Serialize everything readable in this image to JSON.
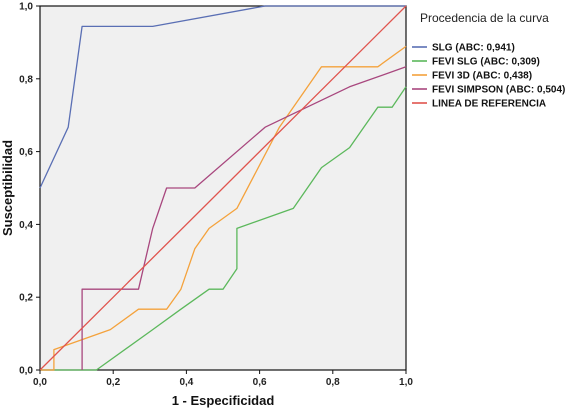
{
  "chart_data": {
    "type": "line",
    "title": "",
    "xlabel": "1 - Especificidad",
    "ylabel": "Susceptibilidad",
    "xlim": [
      0,
      1
    ],
    "ylim": [
      0,
      1
    ],
    "xticks": [
      "0,0",
      "0,2",
      "0,4",
      "0,6",
      "0,8",
      "1,0"
    ],
    "yticks": [
      "0,0",
      "0,2",
      "0,4",
      "0,6",
      "0,8",
      "1,0"
    ],
    "grid": false,
    "legend_title": "Procedencia de la curva",
    "legend_position": "right",
    "series": [
      {
        "name": "SLG (ABC: 0,941)",
        "color": "#5a6fb4",
        "x": [
          0,
          0.077,
          0.115,
          0.308,
          0.615,
          1.0
        ],
        "y": [
          0.5,
          0.667,
          0.944,
          0.944,
          1.0,
          1.0
        ]
      },
      {
        "name": "FEVI SLG (ABC: 0,309)",
        "color": "#5cb85c",
        "x": [
          0,
          0.154,
          0.308,
          0.385,
          0.462,
          0.5,
          0.538,
          0.538,
          0.692,
          0.769,
          0.846,
          0.923,
          0.962,
          1.0
        ],
        "y": [
          0,
          0,
          0.111,
          0.167,
          0.222,
          0.222,
          0.278,
          0.389,
          0.444,
          0.556,
          0.611,
          0.722,
          0.722,
          0.778
        ]
      },
      {
        "name": "FEVI 3D (ABC: 0,438)",
        "color": "#f4a23c",
        "x": [
          0,
          0.038,
          0.038,
          0.192,
          0.269,
          0.346,
          0.385,
          0.423,
          0.462,
          0.538,
          0.654,
          0.769,
          0.923,
          1.0
        ],
        "y": [
          0,
          0,
          0.056,
          0.111,
          0.167,
          0.167,
          0.222,
          0.333,
          0.389,
          0.444,
          0.667,
          0.833,
          0.833,
          0.889
        ]
      },
      {
        "name": "FEVI SIMPSON  (ABC: 0,504)",
        "color": "#a8477e",
        "x": [
          0.115,
          0.115,
          0.269,
          0.308,
          0.346,
          0.423,
          0.615,
          0.846,
          1.0
        ],
        "y": [
          0,
          0.222,
          0.222,
          0.389,
          0.5,
          0.5,
          0.667,
          0.778,
          0.833
        ]
      },
      {
        "name": "LINEA DE REFERENCIA",
        "color": "#e0544e",
        "x": [
          0,
          1
        ],
        "y": [
          0,
          1
        ]
      }
    ]
  }
}
